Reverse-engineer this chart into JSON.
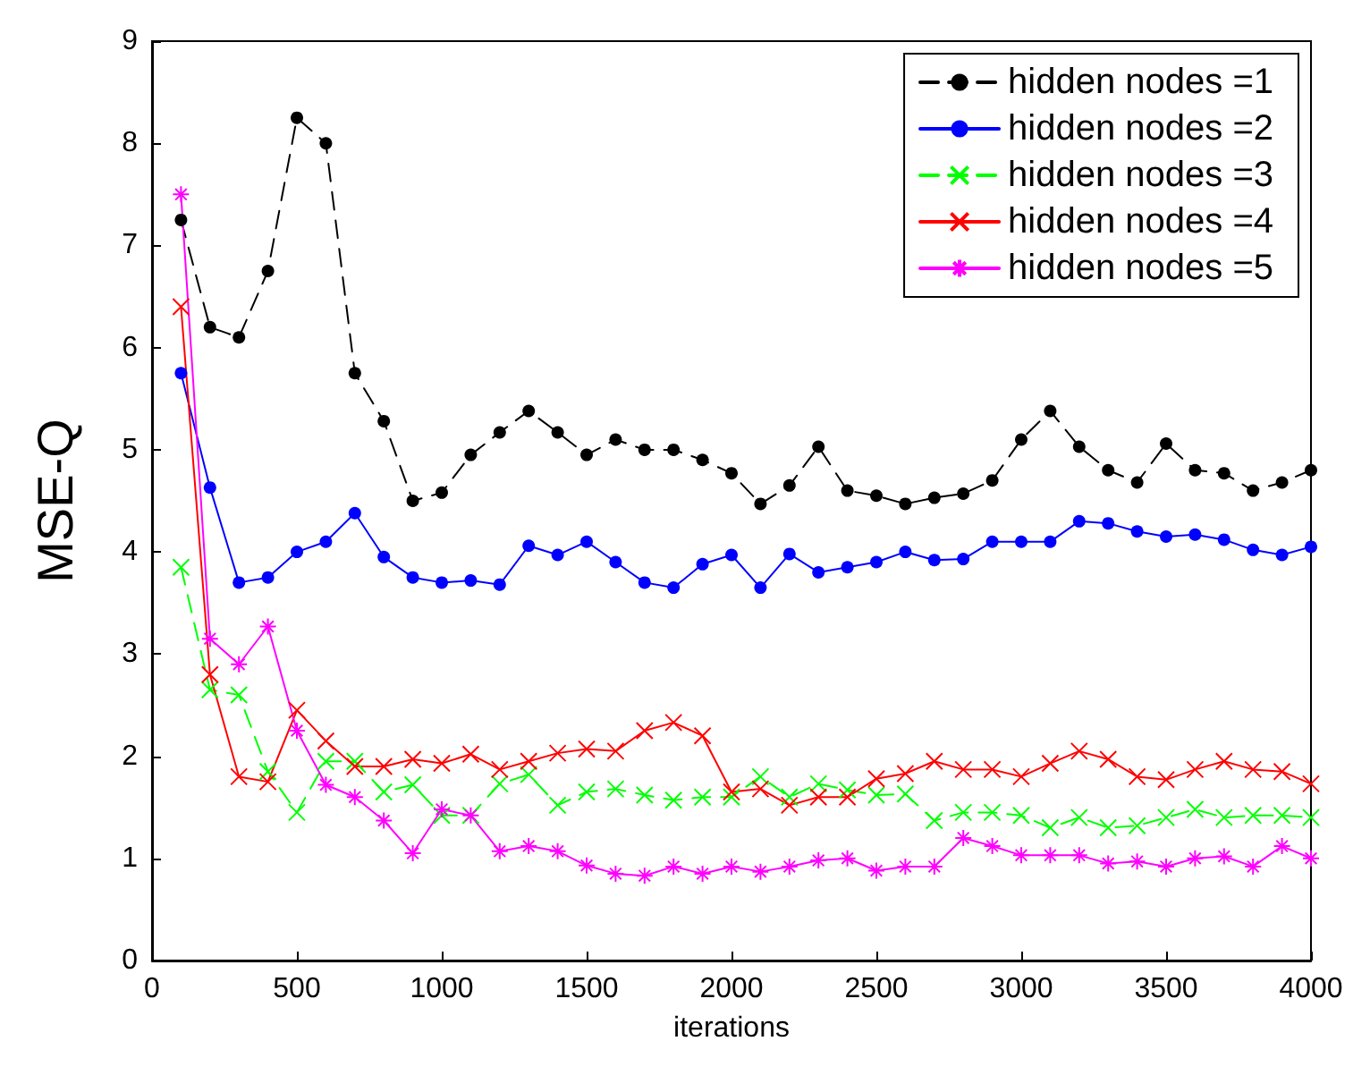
{
  "chart_data": {
    "type": "line",
    "xlabel": "iterations",
    "ylabel": "MSE-Q",
    "x": [
      100,
      200,
      300,
      400,
      500,
      600,
      700,
      800,
      900,
      1000,
      1100,
      1200,
      1300,
      1400,
      1500,
      1600,
      1700,
      1800,
      1900,
      2000,
      2100,
      2200,
      2300,
      2400,
      2500,
      2600,
      2700,
      2800,
      2900,
      3000,
      3100,
      3200,
      3300,
      3400,
      3500,
      3600,
      3700,
      3800,
      3900,
      4000
    ],
    "xlim": [
      0,
      4000
    ],
    "xticks": [
      0,
      500,
      1000,
      1500,
      2000,
      2500,
      3000,
      3500,
      4000
    ],
    "ylim": [
      0,
      9
    ],
    "yticks": [
      0,
      1,
      2,
      3,
      4,
      5,
      6,
      7,
      8,
      9
    ],
    "grid": false,
    "legend": "top right",
    "series": [
      {
        "name": "hidden nodes =1",
        "color": "#000000",
        "marker": "circle",
        "line_style": "dashed",
        "values": [
          7.25,
          6.2,
          6.1,
          6.75,
          8.25,
          8.0,
          5.75,
          5.28,
          4.5,
          4.58,
          4.95,
          5.17,
          5.38,
          5.17,
          4.95,
          5.1,
          5.0,
          5.0,
          4.9,
          4.77,
          4.47,
          4.65,
          5.03,
          4.6,
          4.55,
          4.47,
          4.53,
          4.57,
          4.7,
          5.1,
          5.38,
          5.03,
          4.8,
          4.68,
          5.06,
          4.8,
          4.77,
          4.6,
          4.68,
          4.8
        ]
      },
      {
        "name": "hidden nodes =2",
        "color": "#0000ff",
        "marker": "circle",
        "line_style": "solid",
        "values": [
          5.75,
          4.63,
          3.7,
          3.75,
          4.0,
          4.1,
          4.38,
          3.95,
          3.75,
          3.7,
          3.72,
          3.68,
          4.06,
          3.97,
          4.1,
          3.9,
          3.7,
          3.65,
          3.88,
          3.97,
          3.65,
          3.98,
          3.8,
          3.85,
          3.9,
          4.0,
          3.92,
          3.93,
          4.1,
          4.1,
          4.1,
          4.3,
          4.28,
          4.2,
          4.15,
          4.17,
          4.12,
          4.02,
          3.97,
          4.05
        ]
      },
      {
        "name": "hidden nodes =3",
        "color": "#00ff00",
        "marker": "cross",
        "line_style": "dashed",
        "values": [
          3.85,
          2.65,
          2.6,
          1.85,
          1.45,
          1.95,
          1.95,
          1.65,
          1.72,
          1.42,
          1.42,
          1.73,
          1.82,
          1.52,
          1.65,
          1.68,
          1.62,
          1.57,
          1.6,
          1.6,
          1.8,
          1.6,
          1.73,
          1.67,
          1.62,
          1.63,
          1.37,
          1.45,
          1.45,
          1.42,
          1.3,
          1.4,
          1.3,
          1.32,
          1.4,
          1.48,
          1.4,
          1.42,
          1.42,
          1.4
        ]
      },
      {
        "name": "hidden nodes =4",
        "color": "#ff0000",
        "marker": "cross",
        "line_style": "solid",
        "values": [
          6.4,
          2.8,
          1.8,
          1.75,
          2.45,
          2.15,
          1.9,
          1.9,
          1.97,
          1.93,
          2.02,
          1.87,
          1.95,
          2.03,
          2.07,
          2.05,
          2.25,
          2.33,
          2.2,
          1.65,
          1.68,
          1.52,
          1.6,
          1.6,
          1.78,
          1.83,
          1.95,
          1.87,
          1.87,
          1.8,
          1.93,
          2.05,
          1.97,
          1.8,
          1.77,
          1.87,
          1.95,
          1.87,
          1.85,
          1.73
        ]
      },
      {
        "name": "hidden nodes =5",
        "color": "#ff00ff",
        "marker": "star",
        "line_style": "solid",
        "values": [
          7.5,
          3.15,
          2.9,
          3.27,
          2.25,
          1.72,
          1.6,
          1.37,
          1.05,
          1.48,
          1.42,
          1.07,
          1.12,
          1.07,
          0.93,
          0.85,
          0.83,
          0.92,
          0.85,
          0.92,
          0.87,
          0.92,
          0.98,
          1.0,
          0.88,
          0.92,
          0.92,
          1.2,
          1.12,
          1.03,
          1.03,
          1.03,
          0.95,
          0.97,
          0.92,
          1.0,
          1.02,
          0.92,
          1.12,
          1.0
        ]
      }
    ]
  }
}
